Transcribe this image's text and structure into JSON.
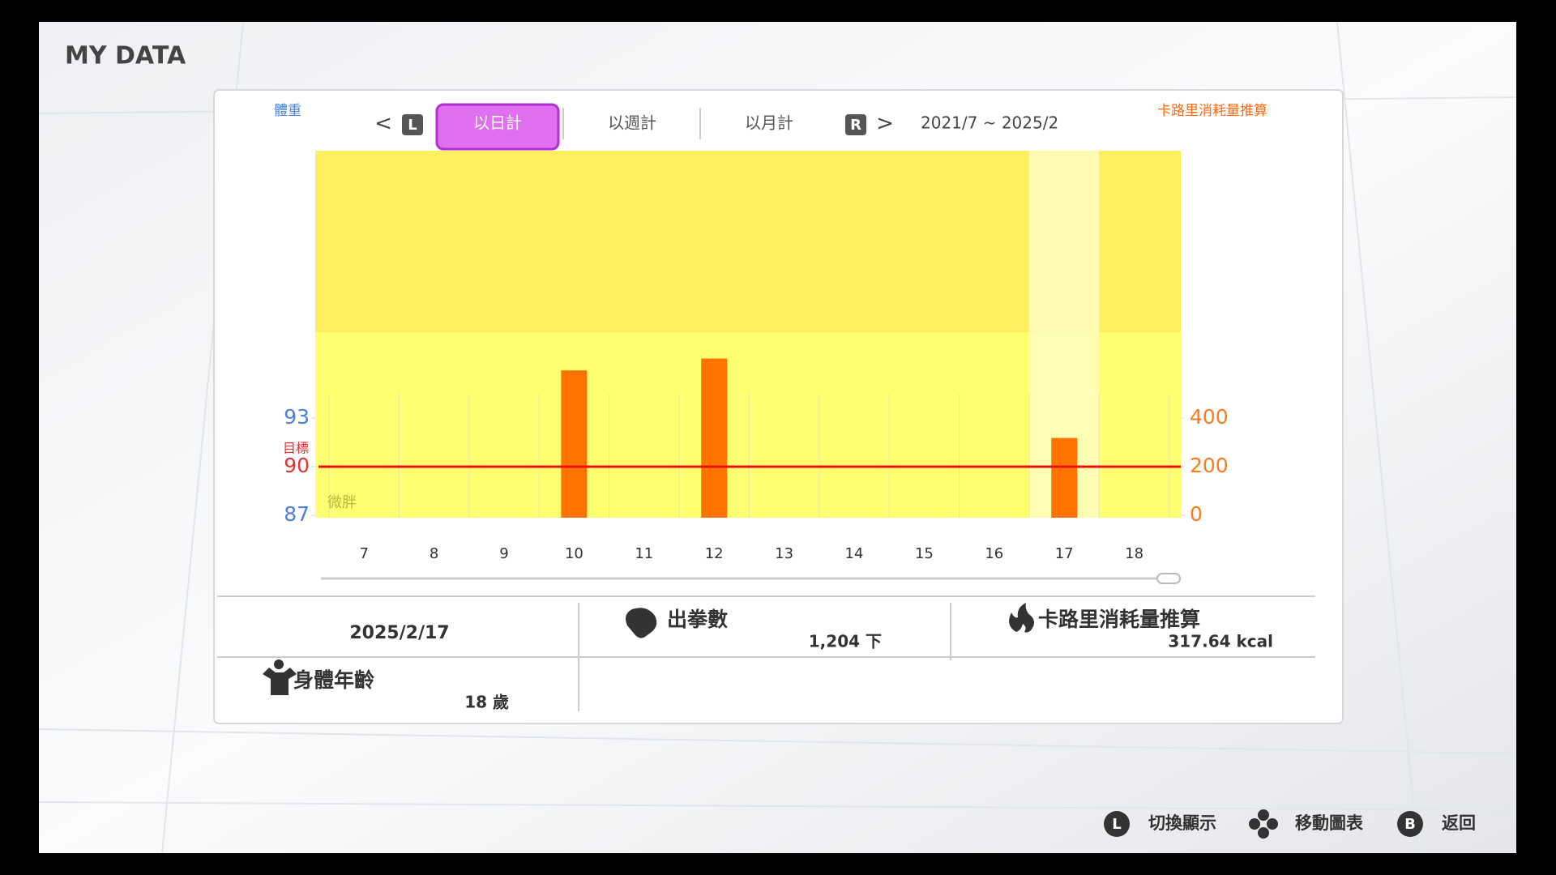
{
  "header": {
    "title": "MY DATA"
  },
  "tabs": {
    "prev": "<",
    "left_button": "L",
    "items": [
      "以日計",
      "以週計",
      "以月計"
    ],
    "right_button": "R",
    "next": ">",
    "range": "2021/7 ~ 2025/2"
  },
  "chart_data": {
    "type": "bar",
    "y_label": "體重",
    "y2_label": "卡路里消耗量推算",
    "categories": [
      "7",
      "8",
      "9",
      "10",
      "11",
      "12",
      "13",
      "14",
      "15",
      "16",
      "17",
      "18"
    ],
    "ylim": [
      87,
      109.5
    ],
    "yticks": [
      87,
      90,
      93
    ],
    "y2lim": [
      0,
      1500
    ],
    "y2ticks": [
      0,
      200,
      400
    ],
    "target": 90,
    "target_label": "目標",
    "zone_label": "微胖",
    "selected": "17",
    "series": [
      {
        "color": "#ff7300",
        "axis": "y2",
        "values": [
          null,
          null,
          null,
          596,
          null,
          645,
          null,
          null,
          null,
          null,
          318,
          null
        ]
      }
    ]
  },
  "summary": {
    "date": "2025/2/17",
    "punches_label": "出拳數",
    "punches_value": "1,204 下",
    "calories_label": "卡路里消耗量推算",
    "calories_value": "317.64 kcal",
    "body_age_label": "身體年齡",
    "body_age_value": "18 歲"
  },
  "footer": {
    "toggle_button": "L",
    "toggle_label": "切換顯示",
    "move_label": "移動圖表",
    "back_button": "B",
    "back_label": "返回"
  }
}
